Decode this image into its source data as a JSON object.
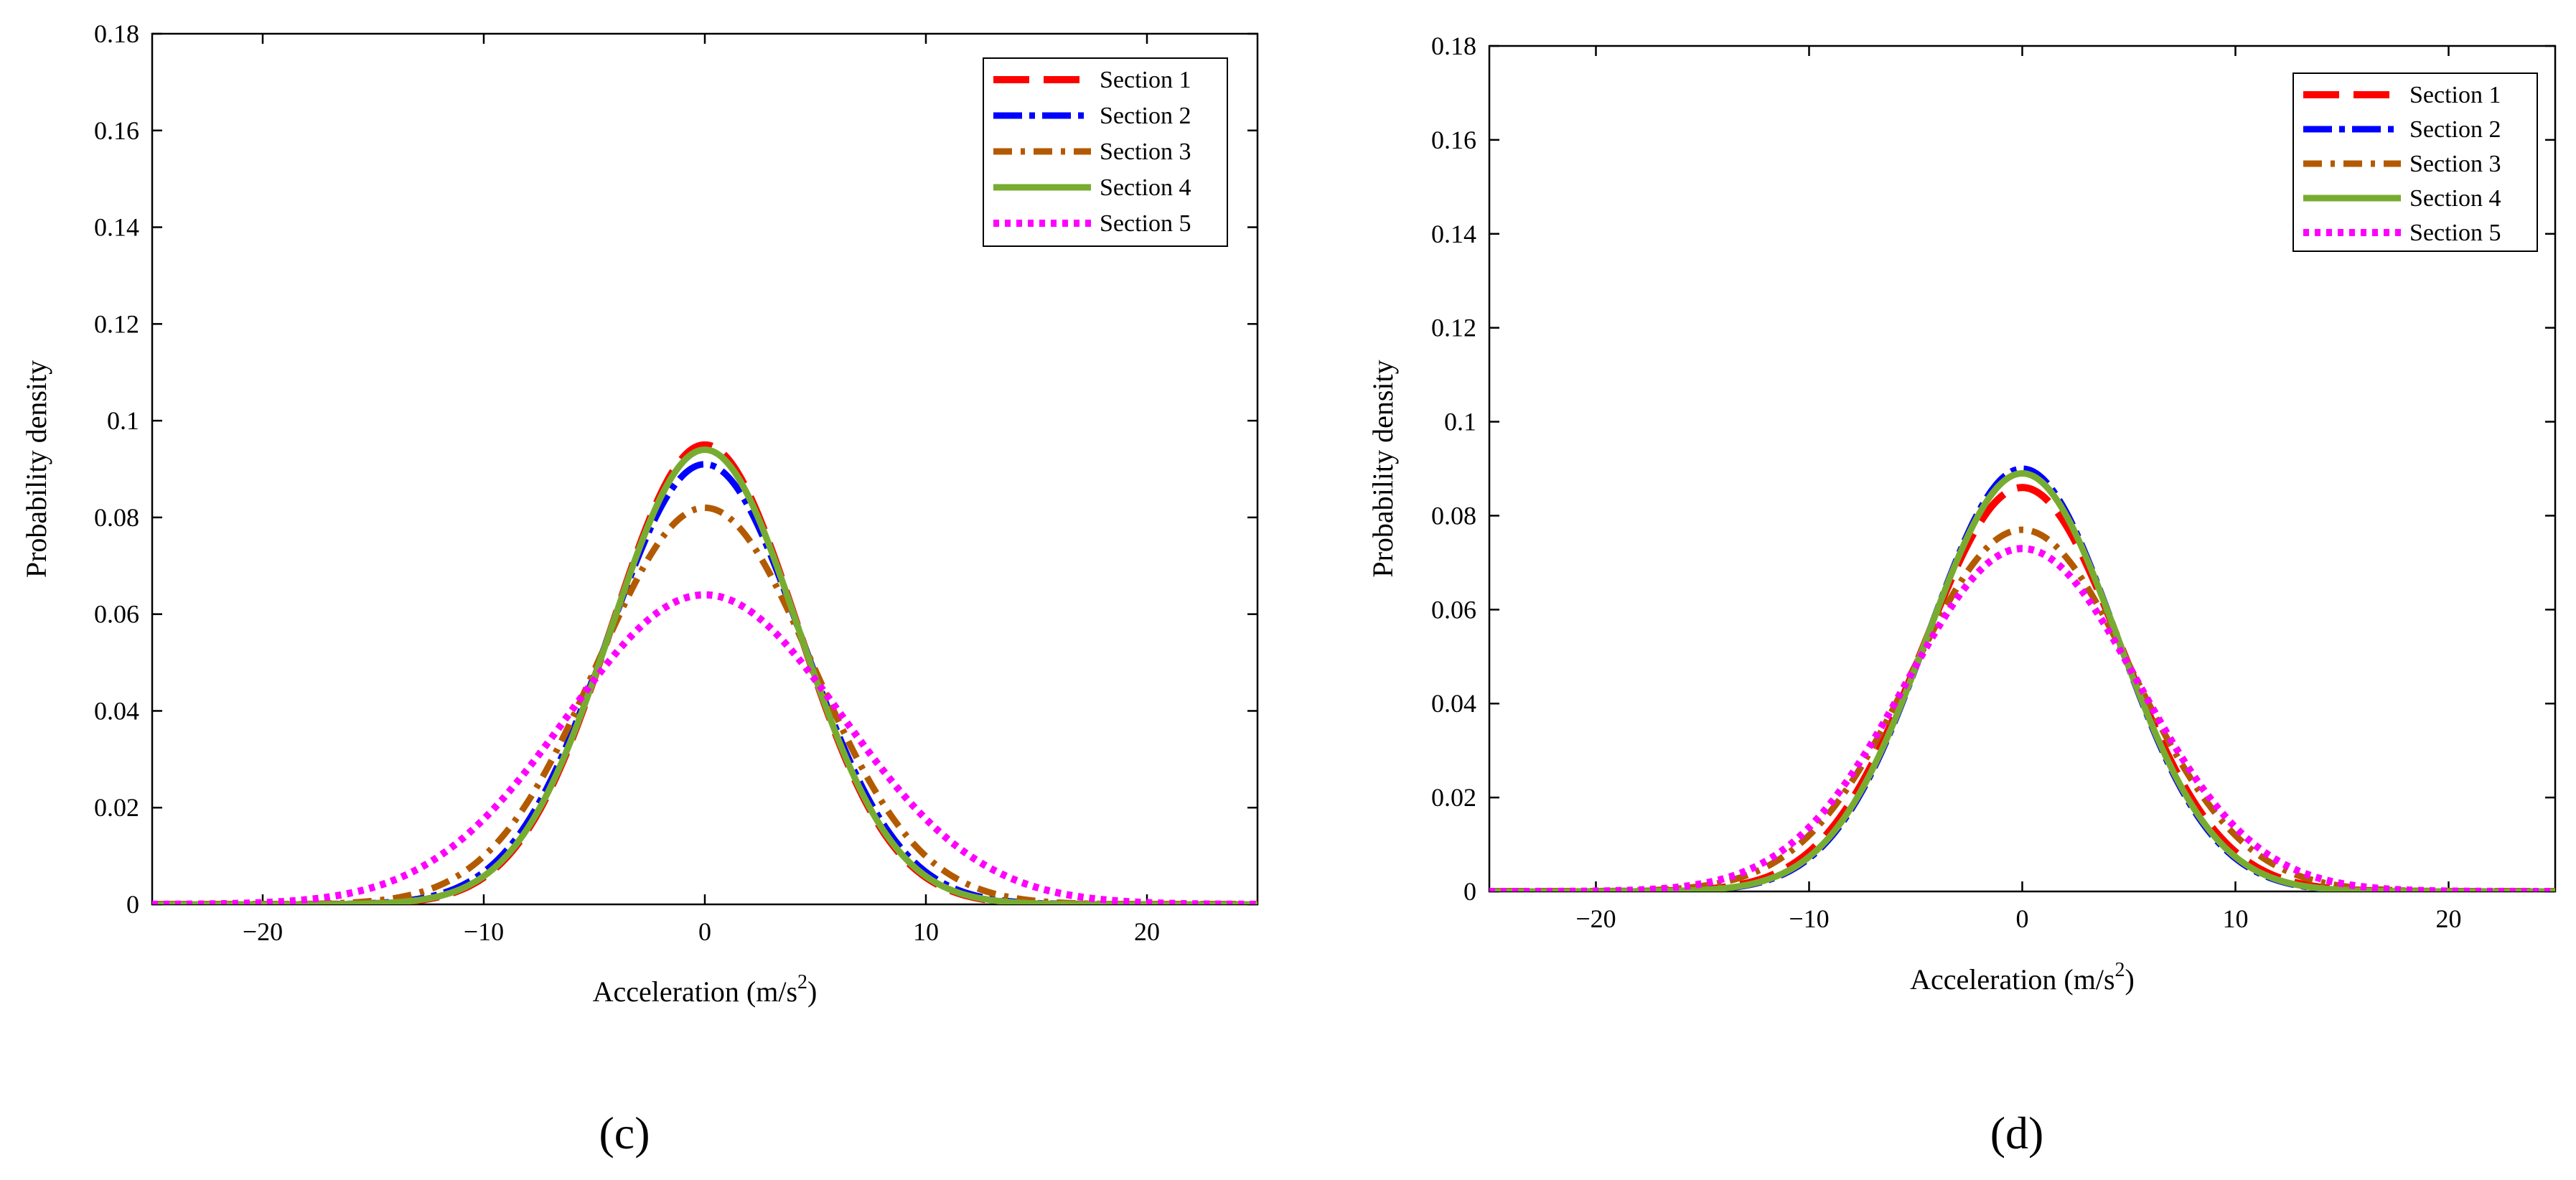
{
  "chart_data": [
    {
      "type": "line",
      "panel_label": "(c)",
      "xlabel": "Acceleration (m/s",
      "xlabel_sup": "2",
      "xlabel_close": ")",
      "ylabel": "Probability density",
      "xlim": [
        -25,
        25
      ],
      "ylim": [
        0,
        0.18
      ],
      "xticks": [
        -20,
        -10,
        0,
        10,
        20
      ],
      "xtick_labels": [
        "−20",
        "−10",
        "0",
        "10",
        "20"
      ],
      "yticks": [
        0,
        0.02,
        0.04,
        0.06,
        0.08,
        0.1,
        0.12,
        0.14,
        0.16,
        0.18
      ],
      "ytick_labels": [
        "0",
        "0.02",
        "0.04",
        "0.06",
        "0.08",
        "0.1",
        "0.12",
        "0.14",
        "0.16",
        "0.18"
      ],
      "legend_position": "top-right",
      "series": [
        {
          "name": "Section 1",
          "style": "section-1",
          "peak": 0.095,
          "sigma": 4.2
        },
        {
          "name": "Section 2",
          "style": "section-2",
          "peak": 0.091,
          "sigma": 4.38
        },
        {
          "name": "Section 3",
          "style": "section-3",
          "peak": 0.082,
          "sigma": 4.87
        },
        {
          "name": "Section 4",
          "style": "section-4",
          "peak": 0.094,
          "sigma": 4.24
        },
        {
          "name": "Section 5",
          "style": "section-5",
          "peak": 0.064,
          "sigma": 6.23
        }
      ]
    },
    {
      "type": "line",
      "panel_label": "(d)",
      "xlabel": "Acceleration (m/s",
      "xlabel_sup": "2",
      "xlabel_close": ")",
      "ylabel": "Probability density",
      "xlim": [
        -25,
        25
      ],
      "ylim": [
        0,
        0.18
      ],
      "xticks": [
        -20,
        -10,
        0,
        10,
        20
      ],
      "xtick_labels": [
        "−20",
        "−10",
        "0",
        "10",
        "20"
      ],
      "yticks": [
        0,
        0.02,
        0.04,
        0.06,
        0.08,
        0.1,
        0.12,
        0.14,
        0.16,
        0.18
      ],
      "ytick_labels": [
        "0",
        "0.02",
        "0.04",
        "0.06",
        "0.08",
        "0.1",
        "0.12",
        "0.14",
        "0.16",
        "0.18"
      ],
      "legend_position": "top-right",
      "series": [
        {
          "name": "Section 1",
          "style": "section-1",
          "peak": 0.086,
          "sigma": 4.64
        },
        {
          "name": "Section 2",
          "style": "section-2",
          "peak": 0.09,
          "sigma": 4.43
        },
        {
          "name": "Section 3",
          "style": "section-3",
          "peak": 0.077,
          "sigma": 5.18
        },
        {
          "name": "Section 4",
          "style": "section-4",
          "peak": 0.089,
          "sigma": 4.48
        },
        {
          "name": "Section 5",
          "style": "section-5",
          "peak": 0.073,
          "sigma": 5.46
        }
      ]
    }
  ],
  "styles": {
    "section-1": {
      "color": "#ff0000"
    },
    "section-2": {
      "color": "#0000ff"
    },
    "section-3": {
      "color": "#b35a00"
    },
    "section-4": {
      "color": "#77ac30"
    },
    "section-5": {
      "color": "#ff00ff"
    }
  }
}
